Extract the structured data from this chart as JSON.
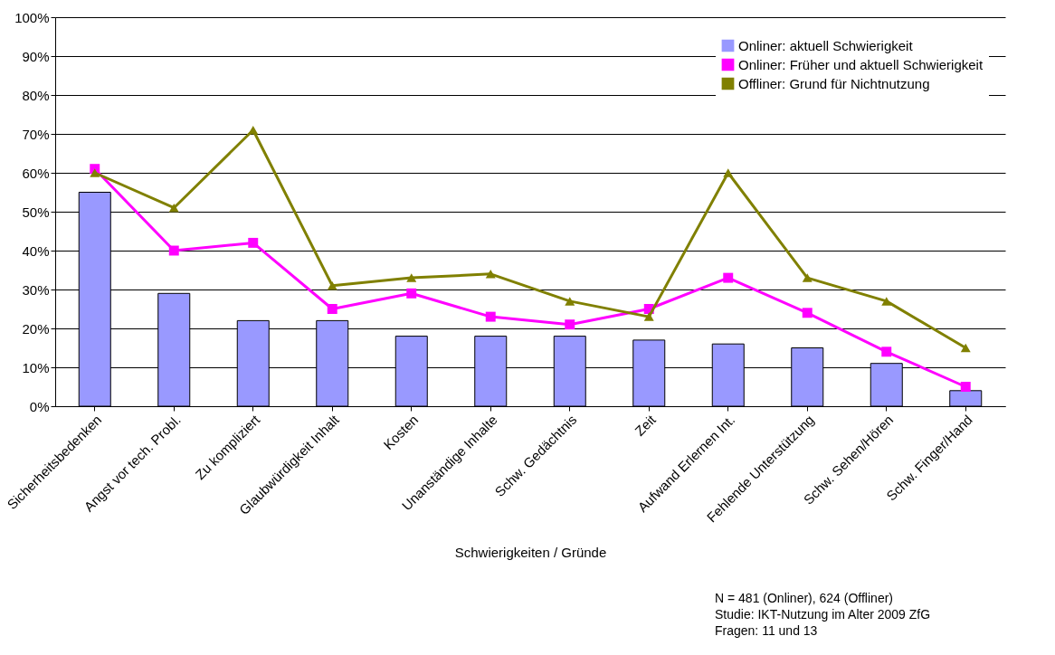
{
  "chart_data": {
    "type": "bar",
    "xlabel": "Schwierigkeiten / Gründe",
    "categories": [
      "Sicherheitsbedenken",
      "Angst vor tech. Probl.",
      "Zu kompliziert",
      "Glaubwürdigkeit Inhalt",
      "Kosten",
      "Unanständige Inhalte",
      "Schw. Gedächtnis",
      "Zeit",
      "Aufwand Erlernen Int.",
      "Fehlende Unterstützung",
      "Schw. Sehen/Hören",
      "Schw. Finger/Hand"
    ],
    "series": [
      {
        "name": "Onliner: aktuell Schwierigkeit",
        "color": "#9999ff",
        "values": [
          55,
          29,
          22,
          22,
          18,
          18,
          18,
          17,
          16,
          15,
          11,
          4
        ]
      },
      {
        "name": "Onliner: Früher und aktuell Schwierigkeit",
        "type": "line",
        "marker": "square",
        "color": "#ff00ff",
        "values": [
          61,
          40,
          42,
          25,
          29,
          23,
          21,
          25,
          33,
          24,
          14,
          5
        ]
      },
      {
        "name": "Offliner: Grund für Nichtnutzung",
        "type": "line",
        "marker": "triangle",
        "color": "#808000",
        "values": [
          60,
          51,
          71,
          31,
          33,
          34,
          27,
          23,
          60,
          33,
          27,
          15
        ]
      }
    ],
    "ylim": [
      0,
      100
    ],
    "yticks": [
      {
        "value": 0,
        "label": "0%"
      },
      {
        "value": 10,
        "label": "10%"
      },
      {
        "value": 20,
        "label": "20%"
      },
      {
        "value": 30,
        "label": "30%"
      },
      {
        "value": 40,
        "label": "40%"
      },
      {
        "value": 50,
        "label": "50%"
      },
      {
        "value": 60,
        "label": "60%"
      },
      {
        "value": 70,
        "label": "70%"
      },
      {
        "value": 80,
        "label": "80%"
      },
      {
        "value": 90,
        "label": "90%"
      },
      {
        "value": 100,
        "label": "100%"
      }
    ],
    "grid": "y",
    "legend": "top right",
    "annotations": [
      "N = 481 (Onliner), 624 (Offliner)",
      "Studie: IKT-Nutzung im Alter 2009 ZfG",
      "Fragen: 11 und 13"
    ]
  }
}
